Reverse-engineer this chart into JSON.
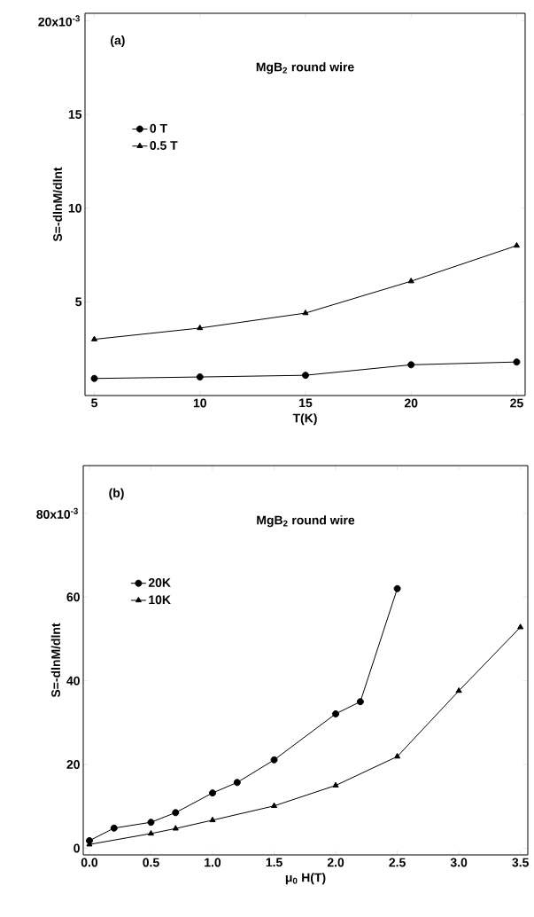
{
  "chart_data": [
    {
      "type": "line",
      "xlabel": "T(K)",
      "ylabel": "S=-dlnM/dlnt",
      "x": [
        5,
        10,
        15,
        20,
        25
      ],
      "series": [
        {
          "name": "0 T",
          "color": "#000000",
          "marker": "circle",
          "values": [
            0.91,
            0.99,
            1.08,
            1.64,
            1.79
          ]
        },
        {
          "name": "0.5 T",
          "color": "#000000",
          "marker": "triangle",
          "values": [
            3.0,
            3.6,
            4.4,
            6.1,
            8.0
          ]
        }
      ],
      "xlim": [
        4.56,
        25.4
      ],
      "ylim": [
        0,
        20.4
      ],
      "xticks": [
        5,
        10,
        15,
        20,
        25
      ],
      "yticks": [
        5,
        10,
        15,
        {
          "value": 20,
          "label": null
        }
      ],
      "legend": "top left",
      "grid": false,
      "line_style": "solid",
      "annotations": [
        "(a)",
        "MgB$_{2}$ round wire",
        "20x10$^{-3}$"
      ]
    },
    {
      "type": "line",
      "xlabel": "μ$_{0}$ H(T)",
      "ylabel": "S=-dlnM/dlnt",
      "series": [
        {
          "name": "20K",
          "color": "#000000",
          "marker": "circle",
          "x": [
            0,
            0.2,
            0.5,
            0.7,
            1.0,
            1.2,
            1.5,
            2.0,
            2.2,
            2.5
          ],
          "values": [
            1.8,
            4.8,
            6.2,
            8.5,
            13.2,
            15.7,
            21.1,
            32.1,
            35.0,
            62.0
          ]
        },
        {
          "name": "10K",
          "color": "#000000",
          "marker": "triangle",
          "x": [
            0,
            0.5,
            0.7,
            1.0,
            1.5,
            2.0,
            2.5,
            3.0,
            3.5
          ],
          "values": [
            0.9,
            3.5,
            4.7,
            6.7,
            10.1,
            15.0,
            21.9,
            37.6,
            52.8
          ]
        }
      ],
      "xlim": [
        -0.05,
        3.56
      ],
      "ylim": [
        -1.6,
        91.4
      ],
      "xticks": [
        {
          "value": 0,
          "label": "0.0"
        },
        0.5,
        {
          "value": 1,
          "label": "1.0"
        },
        1.5,
        {
          "value": 2,
          "label": "2.0"
        },
        2.5,
        {
          "value": 3,
          "label": "3.0"
        },
        3.5
      ],
      "yticks": [
        0,
        20,
        40,
        60,
        {
          "value": 80,
          "label": null
        }
      ],
      "legend": "top left",
      "grid": false,
      "line_style": "solid",
      "annotations": [
        "(b)",
        "MgB$_{2}$ round wire",
        "80x10$^{-3}$"
      ]
    }
  ]
}
